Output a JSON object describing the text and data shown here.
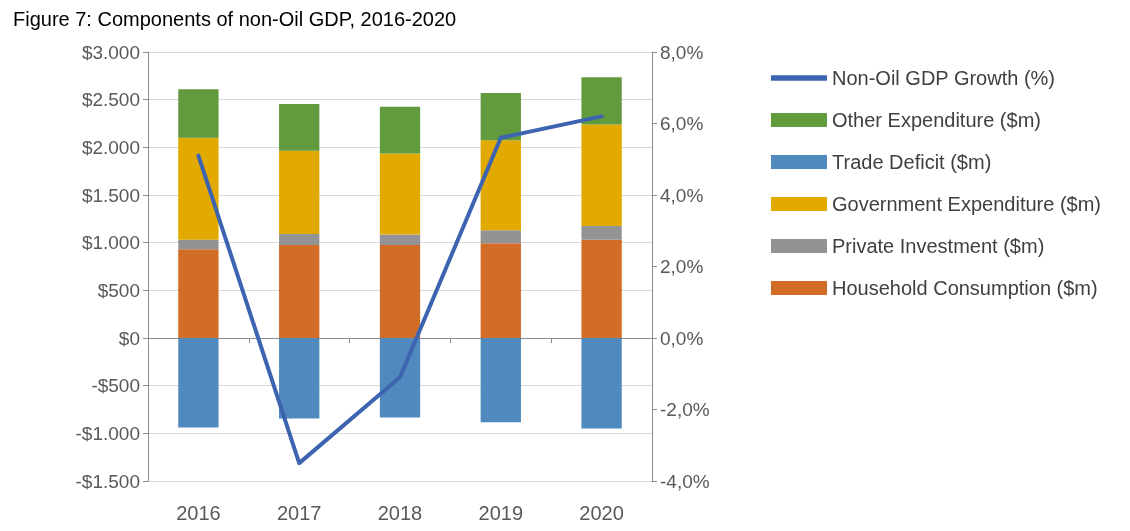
{
  "chart_data": {
    "type": "bar",
    "title": "Figure 7: Components of non-Oil GDP, 2016-2020",
    "categories": [
      "2016",
      "2017",
      "2018",
      "2019",
      "2020"
    ],
    "stacked": true,
    "series": [
      {
        "name": "Household Consumption ($m)",
        "color": "#d26d28",
        "values": [
          930,
          975,
          975,
          995,
          1030
        ]
      },
      {
        "name": "Private Investment ($m)",
        "color": "#939393",
        "values": [
          100,
          115,
          110,
          135,
          145
        ]
      },
      {
        "name": "Government Expenditure ($m)",
        "color": "#e2aa00",
        "values": [
          1070,
          875,
          850,
          945,
          1065
        ]
      },
      {
        "name": "Trade Deficit ($m)",
        "color": "#4f89bd",
        "values": [
          -940,
          -845,
          -835,
          -885,
          -950
        ]
      },
      {
        "name": "Other Expenditure ($m)",
        "color": "#629a3e",
        "values": [
          510,
          490,
          490,
          495,
          495
        ]
      },
      {
        "name": "Non-Oil GDP Growth (%)",
        "type": "line",
        "axis": "y2",
        "color": "#3d64b0",
        "values": [
          5.1,
          -3.5,
          -1.1,
          5.6,
          6.2
        ]
      }
    ],
    "ylim": [
      -1500,
      3000
    ],
    "yticks": [
      {
        "value": -1500,
        "label": "-$1.500"
      },
      {
        "value": -1000,
        "label": "-$1.000"
      },
      {
        "value": -500,
        "label": "-$500"
      },
      {
        "value": 0,
        "label": "$0"
      },
      {
        "value": 500,
        "label": "$500"
      },
      {
        "value": 1000,
        "label": "$1.000"
      },
      {
        "value": 1500,
        "label": "$1.500"
      },
      {
        "value": 2000,
        "label": "$2.000"
      },
      {
        "value": 2500,
        "label": "$2.500"
      },
      {
        "value": 3000,
        "label": "$3.000"
      }
    ],
    "y2lim": [
      -4,
      8
    ],
    "y2ticks": [
      {
        "value": -4,
        "label": "-4,0%"
      },
      {
        "value": -2,
        "label": "-2,0%"
      },
      {
        "value": 0,
        "label": "0,0%"
      },
      {
        "value": 2,
        "label": "2,0%"
      },
      {
        "value": 4,
        "label": "4,0%"
      },
      {
        "value": 6,
        "label": "6,0%"
      },
      {
        "value": 8,
        "label": "8,0%"
      }
    ],
    "grid": "y",
    "legend": "right",
    "marker": "none"
  }
}
